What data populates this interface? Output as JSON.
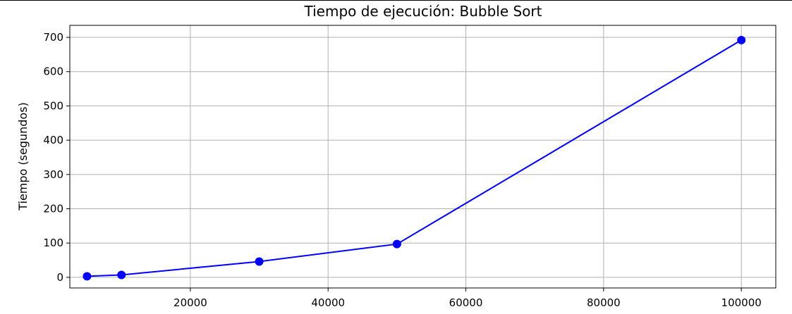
{
  "chart_data": {
    "type": "line",
    "title": "Tiempo de ejecución: Bubble Sort",
    "xlabel": "",
    "ylabel": "Tiempo (segundos)",
    "xlim": [
      2500,
      105000
    ],
    "ylim": [
      -31,
      735
    ],
    "x_ticks": [
      20000,
      40000,
      60000,
      80000,
      100000
    ],
    "y_ticks": [
      0,
      100,
      200,
      300,
      400,
      500,
      600,
      700
    ],
    "grid": true,
    "series": [
      {
        "color": "#0000ff",
        "marker": "circle",
        "points": [
          {
            "x": 5000,
            "y": 3
          },
          {
            "x": 10000,
            "y": 7
          },
          {
            "x": 30000,
            "y": 46
          },
          {
            "x": 50000,
            "y": 97
          },
          {
            "x": 100000,
            "y": 692
          }
        ]
      }
    ]
  }
}
